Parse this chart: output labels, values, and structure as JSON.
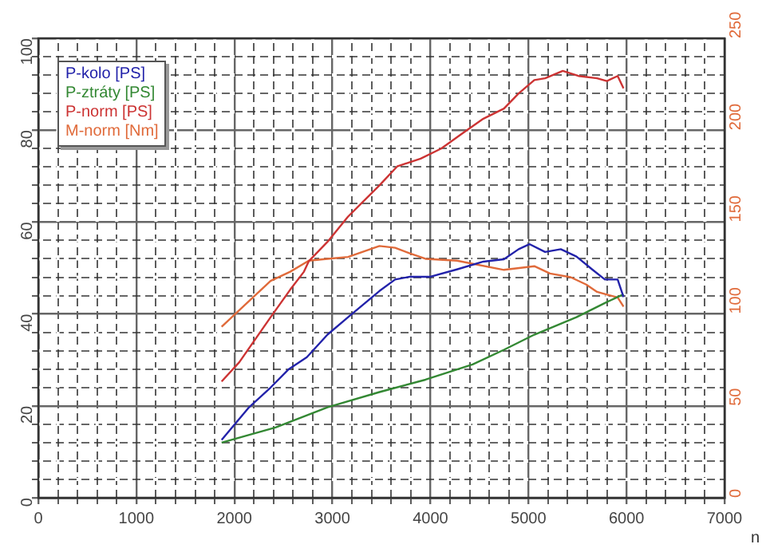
{
  "chart_data": {
    "type": "line",
    "xlabel": "n",
    "xlim": [
      0,
      7000
    ],
    "xticks": [
      0,
      {
        "value": 200,
        "label": null
      },
      {
        "value": 400,
        "label": null
      },
      {
        "value": 600,
        "label": null
      },
      {
        "value": 800,
        "label": null
      },
      1000,
      {
        "value": 1200,
        "label": null
      },
      {
        "value": 1400,
        "label": null
      },
      {
        "value": 1600,
        "label": null
      },
      {
        "value": 1800,
        "label": null
      },
      2000,
      {
        "value": 2200,
        "label": null
      },
      {
        "value": 2400,
        "label": null
      },
      {
        "value": 2600,
        "label": null
      },
      {
        "value": 2800,
        "label": null
      },
      3000,
      {
        "value": 3200,
        "label": null
      },
      {
        "value": 3400,
        "label": null
      },
      {
        "value": 3600,
        "label": null
      },
      {
        "value": 3800,
        "label": null
      },
      4000,
      {
        "value": 4200,
        "label": null
      },
      {
        "value": 4400,
        "label": null
      },
      {
        "value": 4600,
        "label": null
      },
      {
        "value": 4800,
        "label": null
      },
      5000,
      {
        "value": 5200,
        "label": null
      },
      {
        "value": 5400,
        "label": null
      },
      {
        "value": 5600,
        "label": null
      },
      {
        "value": 5800,
        "label": null
      },
      6000,
      {
        "value": 6200,
        "label": null
      },
      {
        "value": 6400,
        "label": null
      },
      {
        "value": 6600,
        "label": null
      },
      {
        "value": 6800,
        "label": null
      },
      7000
    ],
    "ylim": [
      0,
      100
    ],
    "yticks": [
      0,
      {
        "value": 4,
        "label": null
      },
      {
        "value": 8,
        "label": null
      },
      {
        "value": 12,
        "label": null
      },
      {
        "value": 16,
        "label": null
      },
      20,
      {
        "value": 24,
        "label": null
      },
      {
        "value": 28,
        "label": null
      },
      {
        "value": 32,
        "label": null
      },
      {
        "value": 36,
        "label": null
      },
      40,
      {
        "value": 44,
        "label": null
      },
      {
        "value": 48,
        "label": null
      },
      {
        "value": 52,
        "label": null
      },
      {
        "value": 56,
        "label": null
      },
      60,
      {
        "value": 64,
        "label": null
      },
      {
        "value": 68,
        "label": null
      },
      {
        "value": 72,
        "label": null
      },
      {
        "value": 76,
        "label": null
      },
      80,
      {
        "value": 84,
        "label": null
      },
      {
        "value": 88,
        "label": null
      },
      {
        "value": 92,
        "label": null
      },
      {
        "value": 96,
        "label": null
      },
      100
    ],
    "y2lim": [
      0,
      250
    ],
    "y2ticks": [
      0,
      50,
      100,
      150,
      200,
      250
    ],
    "grid": true,
    "legend": "top left",
    "series": [
      {
        "name": "P-kolo [PS]",
        "color": "#2222aa",
        "x": [
          1870,
          2150,
          2370,
          2550,
          2740,
          2950,
          3160,
          3480,
          3640,
          3790,
          4000,
          4270,
          4540,
          4750,
          4900,
          5010,
          5170,
          5330,
          5490,
          5650,
          5780,
          5910,
          5970
        ],
        "values": [
          12.6,
          19.7,
          24,
          27.9,
          30.6,
          35.5,
          39.3,
          45,
          47.5,
          48.1,
          48.1,
          49.7,
          51.4,
          51.9,
          54.1,
          55.2,
          53.5,
          54.1,
          52.5,
          49.7,
          47.5,
          47.5,
          43.7
        ]
      },
      {
        "name": "P-ztráty [PS]",
        "color": "#338833",
        "x": [
          1870,
          2420,
          2950,
          3480,
          3950,
          4430,
          4750,
          5060,
          5490,
          5800,
          5970
        ],
        "values": [
          12,
          15.3,
          19.7,
          23,
          25.7,
          29,
          32.2,
          35.5,
          39.3,
          42.6,
          44.3
        ]
      },
      {
        "name": "P-norm [PS]",
        "color": "#cc3333",
        "x": [
          1870,
          2050,
          2370,
          2570,
          2710,
          2760,
          2950,
          3160,
          3480,
          3660,
          3900,
          4110,
          4320,
          4540,
          4750,
          4900,
          5060,
          5170,
          5350,
          5510,
          5700,
          5800,
          5910,
          5970
        ],
        "values": [
          25.3,
          29.5,
          39.3,
          45.3,
          49.2,
          51.5,
          55.7,
          61.2,
          68,
          72.1,
          73.8,
          76,
          79.2,
          82.5,
          84.7,
          88,
          90.9,
          91.3,
          92.9,
          91.8,
          91.3,
          90.7,
          91.8,
          89.1
        ]
      },
      {
        "name": "M-norm [Nm]",
        "color": "#e06a3a",
        "axis": "y2",
        "x": [
          1870,
          2150,
          2370,
          2570,
          2760,
          2950,
          3160,
          3480,
          3640,
          3790,
          3950,
          4270,
          4750,
          5060,
          5220,
          5430,
          5590,
          5700,
          5910,
          5970
        ],
        "values": [
          93,
          107,
          118,
          123,
          129,
          130,
          131,
          137,
          136,
          133,
          130,
          129,
          124,
          126,
          122,
          120,
          116,
          112,
          109,
          104
        ]
      }
    ]
  }
}
